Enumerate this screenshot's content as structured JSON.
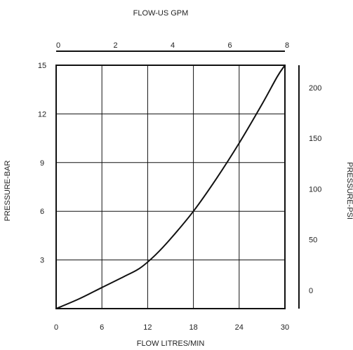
{
  "chart_data": {
    "type": "line",
    "title": "",
    "xlabel": "FLOW LITRES/MIN",
    "ylabel": "PRESSURE-BAR",
    "x2label": "FLOW-US GPM",
    "y2label": "PRESSURE-PSI",
    "xlim": [
      0,
      30
    ],
    "ylim": [
      0,
      15
    ],
    "x2lim": [
      0,
      8
    ],
    "y2lim": [
      -18,
      222
    ],
    "xticks": [
      "0",
      "6",
      "12",
      "18",
      "24",
      "30"
    ],
    "yticks": [
      "3",
      "6",
      "9",
      "12",
      "15"
    ],
    "x2ticks": [
      "0",
      "2",
      "4",
      "6",
      "8"
    ],
    "y2ticks": [
      "0",
      "50",
      "100",
      "150",
      "200"
    ],
    "grid": true,
    "series": [
      {
        "x": [
          0,
          3,
          6,
          9,
          11,
          13,
          15,
          18,
          21,
          24,
          27,
          29,
          30
        ],
        "y": [
          0,
          0.6,
          1.3,
          2.0,
          2.5,
          3.3,
          4.3,
          6.0,
          8.0,
          10.2,
          12.6,
          14.3,
          15.0
        ]
      }
    ]
  }
}
